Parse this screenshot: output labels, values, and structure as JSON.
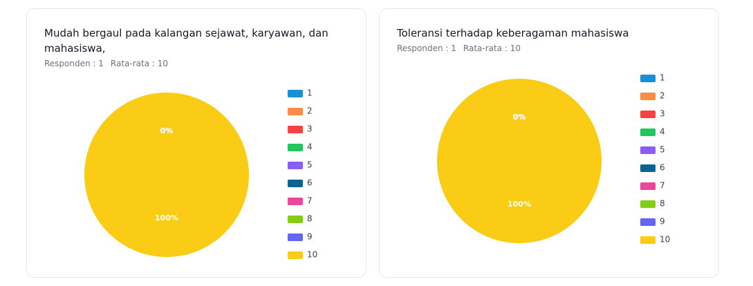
{
  "chart_data": [
    {
      "type": "pie",
      "title": "Mudah bergaul pada kalangan sejawat, karyawan, dan mahasiswa,",
      "respondents": "Responden : 1",
      "average": "Rata-rata : 10",
      "categories": [
        "1",
        "2",
        "3",
        "4",
        "5",
        "6",
        "7",
        "8",
        "9",
        "10"
      ],
      "values": [
        0,
        0,
        0,
        0,
        0,
        0,
        0,
        0,
        0,
        100
      ],
      "value_labels": [
        "0%",
        "0%",
        "0%",
        "0%",
        "0%",
        "0%",
        "0%",
        "0%",
        "0%",
        "100%"
      ],
      "colors": [
        "#1a8fd6",
        "#fb8c45",
        "#f94144",
        "#22c55e",
        "#8b5cf6",
        "#0c6390",
        "#ec4899",
        "#84cc16",
        "#6366f1",
        "#facc15"
      ]
    },
    {
      "type": "pie",
      "title": "Toleransi terhadap keberagaman mahasiswa",
      "respondents": "Responden : 1",
      "average": "Rata-rata : 10",
      "categories": [
        "1",
        "2",
        "3",
        "4",
        "5",
        "6",
        "7",
        "8",
        "9",
        "10"
      ],
      "values": [
        0,
        0,
        0,
        0,
        0,
        0,
        0,
        0,
        0,
        100
      ],
      "value_labels": [
        "0%",
        "0%",
        "0%",
        "0%",
        "0%",
        "0%",
        "0%",
        "0%",
        "0%",
        "100%"
      ],
      "colors": [
        "#1a8fd6",
        "#fb8c45",
        "#f94144",
        "#22c55e",
        "#8b5cf6",
        "#0c6390",
        "#ec4899",
        "#84cc16",
        "#6366f1",
        "#facc15"
      ]
    }
  ]
}
